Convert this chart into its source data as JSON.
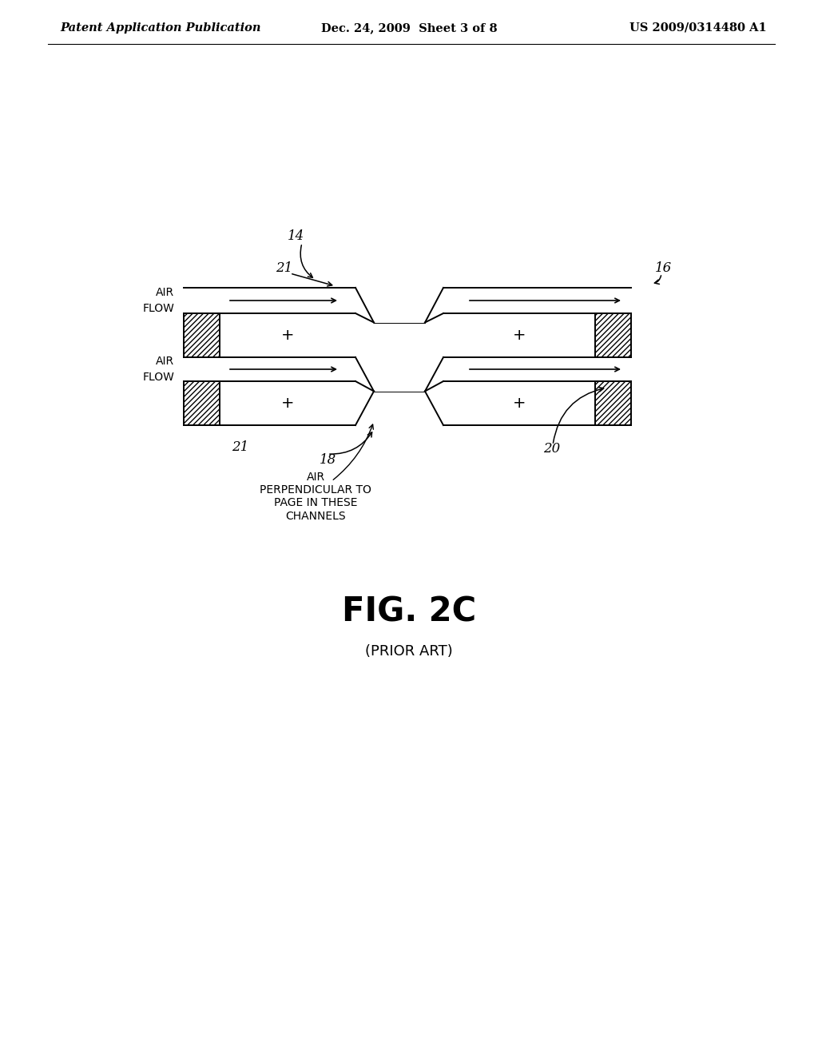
{
  "background_color": "#ffffff",
  "header_left": "Patent Application Publication",
  "header_center": "Dec. 24, 2009  Sheet 3 of 8",
  "header_right": "US 2009/0314480 A1",
  "header_fontsize": 10.5,
  "figure_title": "FIG. 2C",
  "figure_title_fontsize": 30,
  "subtitle": "(PRIOR ART)",
  "subtitle_fontsize": 13,
  "label_14": "14",
  "label_16": "16",
  "label_18": "18",
  "label_20": "20",
  "label_21": "21",
  "annotation_text": "AIR\nPERPENDICULAR TO\nPAGE IN THESE\nCHANNELS",
  "line_color": "#000000",
  "line_width": 1.4
}
